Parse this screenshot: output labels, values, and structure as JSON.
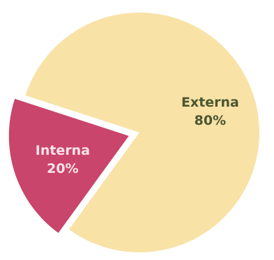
{
  "chart_data": {
    "type": "pie",
    "slices": [
      {
        "label": "Externa",
        "value": 80,
        "value_label": "80%",
        "color": "#f8e2a6",
        "exploded": false,
        "label_color": "#4b5630"
      },
      {
        "label": "Interna",
        "value": 20,
        "value_label": "20%",
        "color": "#c9456b",
        "exploded": true,
        "label_color": "#fbe3ea"
      }
    ],
    "title": "",
    "legend": "none"
  }
}
